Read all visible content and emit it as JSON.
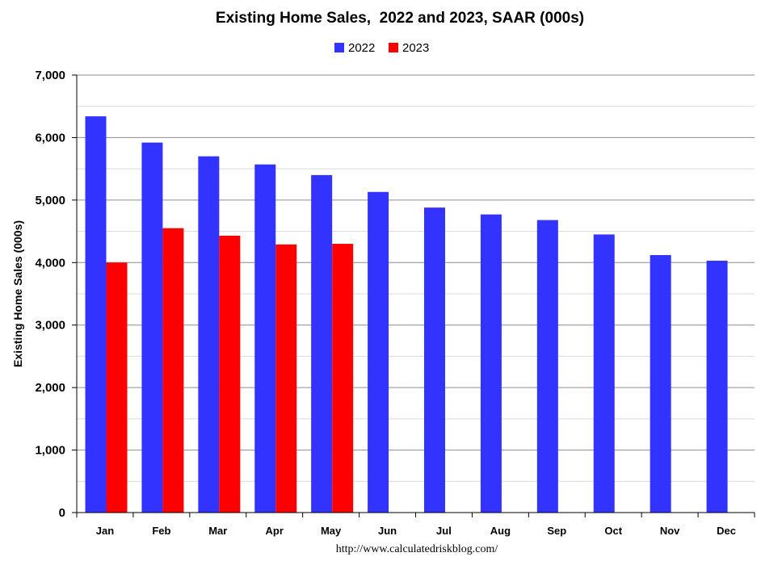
{
  "chart_data": {
    "type": "bar",
    "title": "Existing Home Sales,  2022 and 2023, SAAR (000s)",
    "ylabel": "Existing Home Sales (000s)",
    "xlabel": "",
    "ylim": [
      0,
      7000
    ],
    "yticks": [
      0,
      1000,
      2000,
      3000,
      4000,
      5000,
      6000,
      7000
    ],
    "ytick_labels": [
      "0",
      "1,000",
      "2,000",
      "3,000",
      "4,000",
      "5,000",
      "6,000",
      "7,000"
    ],
    "categories": [
      "Jan",
      "Feb",
      "Mar",
      "Apr",
      "May",
      "Jun",
      "Jul",
      "Aug",
      "Sep",
      "Oct",
      "Nov",
      "Dec"
    ],
    "series": [
      {
        "name": "2022",
        "color": "#3333FF",
        "values": [
          6340,
          5920,
          5700,
          5570,
          5400,
          5130,
          4880,
          4770,
          4680,
          4450,
          4120,
          4030
        ]
      },
      {
        "name": "2023",
        "color": "#FF0000",
        "values": [
          4000,
          4550,
          4430,
          4290,
          4300,
          null,
          null,
          null,
          null,
          null,
          null,
          null
        ]
      }
    ],
    "legend_position": "top-center",
    "grid": true,
    "source_note": "http://www.calculatedriskblog.com/"
  }
}
